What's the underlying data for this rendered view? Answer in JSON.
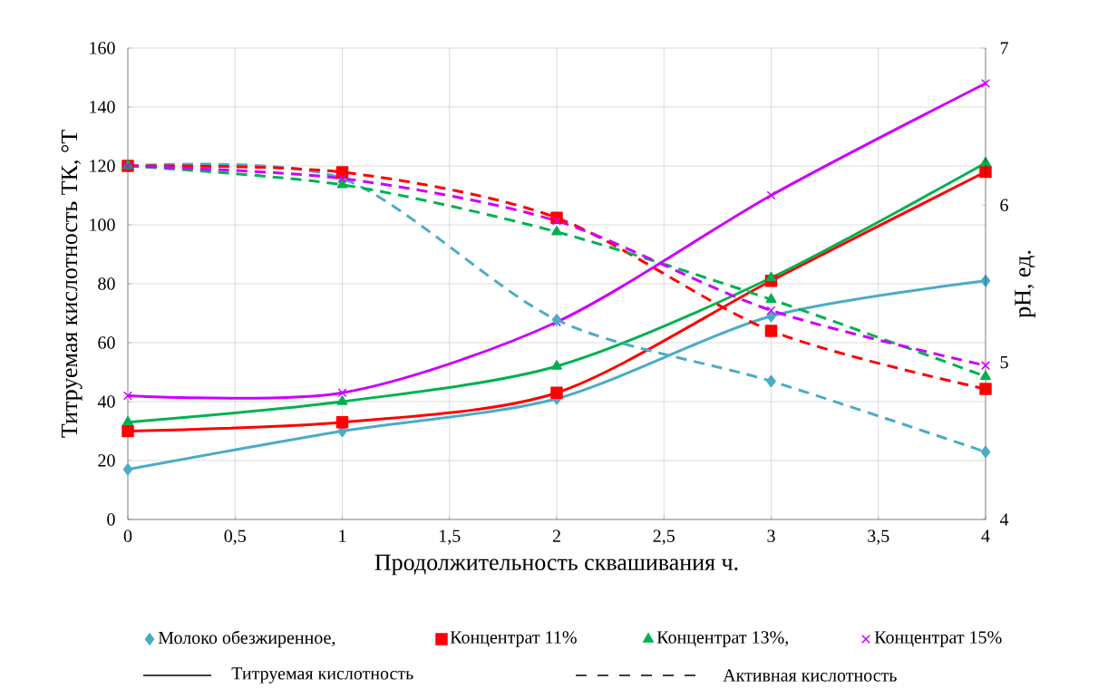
{
  "chart_data": {
    "type": "line",
    "xlabel": "Продолжительность сквашивания     ч.",
    "ylabel": "Титруемая кислотность ТК, °T",
    "y2label": "pH, ед.",
    "x": [
      0,
      1,
      2,
      3,
      4
    ],
    "xlim": [
      0,
      4
    ],
    "xticks": [
      0,
      {
        "value": 0.5,
        "label": "0,5"
      },
      1,
      {
        "value": 1.5,
        "label": "1,5"
      },
      2,
      {
        "value": 2.5,
        "label": "2,5"
      },
      3,
      {
        "value": 3.5,
        "label": "3,5"
      },
      4
    ],
    "ylim": [
      0,
      160
    ],
    "yticks": [
      0,
      20,
      40,
      60,
      80,
      100,
      120,
      140,
      160
    ],
    "y2lim": [
      4,
      7
    ],
    "y2ticks": [
      4,
      5,
      6,
      7
    ],
    "grid": true,
    "legend": "bottom",
    "series": [
      {
        "name": "Молоко обезжиренное,",
        "color": "#4bacc6",
        "marker": "diamond",
        "line_style": "solid",
        "values": [
          17,
          30,
          41,
          69,
          81
        ]
      },
      {
        "name": "Концентрат 11%",
        "color": "#ff0000",
        "marker": "square",
        "line_style": "solid",
        "values": [
          30,
          33,
          43,
          81,
          118
        ]
      },
      {
        "name": "Концентрат 13%,",
        "color": "#00b050",
        "marker": "triangle",
        "line_style": "solid",
        "values": [
          33,
          40,
          52,
          82,
          121
        ]
      },
      {
        "name": "Концентрат 15%",
        "color": "#cc00ff",
        "marker": "cross",
        "line_style": "solid",
        "values": [
          42,
          43,
          67,
          110,
          148
        ]
      },
      {
        "color": "#4bacc6",
        "marker": "diamond",
        "line_style": "dashed",
        "axis": "y2",
        "values": [
          6.25,
          6.17,
          5.27,
          4.88,
          4.43
        ]
      },
      {
        "color": "#ff0000",
        "marker": "square",
        "line_style": "dashed",
        "axis": "y2",
        "values": [
          6.25,
          6.21,
          5.92,
          5.2,
          4.83
        ]
      },
      {
        "color": "#00b050",
        "marker": "triangle",
        "line_style": "dashed",
        "axis": "y2",
        "values": [
          6.25,
          6.13,
          5.83,
          5.4,
          4.91
        ]
      },
      {
        "color": "#cc00ff",
        "marker": "cross",
        "line_style": "dashed",
        "axis": "y2",
        "values": [
          6.25,
          6.17,
          5.9,
          5.33,
          4.98
        ]
      }
    ],
    "annotations": [
      "Титруемая кислотность",
      "Активная кислотность"
    ]
  }
}
